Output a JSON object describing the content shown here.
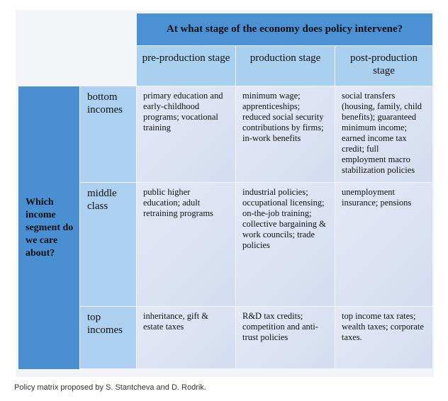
{
  "table": {
    "question": "At what stage of the economy does policy intervene?",
    "row_header": "Which income segment do we care about?",
    "columns": [
      "pre-production stage",
      "production stage",
      "post-production stage"
    ],
    "rows": [
      {
        "label": "bottom incomes",
        "cells": [
          "primary education and early-childhood programs; vocational training",
          "minimum wage; apprenticeships; reduced social security contributions by firms; in-work benefits",
          "social transfers (housing, family, child benefits); guaranteed minimum income; earned income tax credit; full employment macro stabilization policies"
        ]
      },
      {
        "label": "middle class",
        "cells": [
          "public higher education; adult retraining programs",
          "industrial policies; occupational licensing; on-the-job training; collective bargaining & work councils; trade policies",
          "unemployment insurance; pensions"
        ]
      },
      {
        "label": "top incomes",
        "cells": [
          "inheritance, gift & estate taxes",
          "R&D tax credits; competition and anti-trust policies",
          "top income tax rates; wealth taxes; corporate taxes."
        ]
      }
    ]
  },
  "caption": "Policy matrix proposed by S. Stantcheva and D. Rodrik."
}
